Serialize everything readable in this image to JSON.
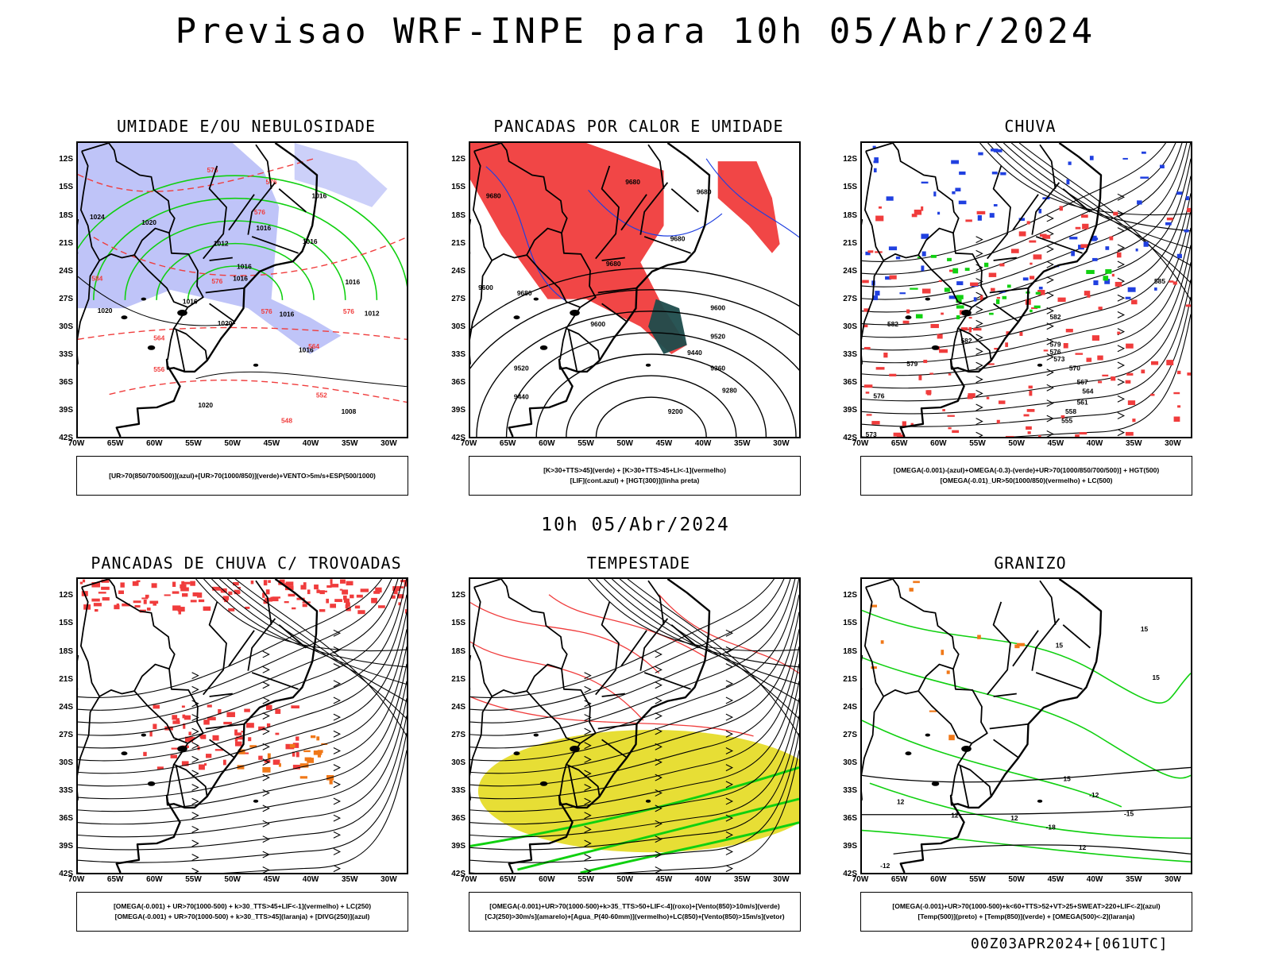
{
  "title": "Previsao WRF-INPE  para 10h 05/Abr/2024",
  "subtitle": "10h 05/Abr/2024",
  "run_id": "00Z03APR2024+[061UTC]",
  "lat_labels": [
    "12S",
    "15S",
    "18S",
    "21S",
    "24S",
    "27S",
    "30S",
    "33S",
    "36S",
    "39S",
    "42S"
  ],
  "lon_labels": [
    "70W",
    "65W",
    "60W",
    "55W",
    "50W",
    "45W",
    "40W",
    "35W",
    "30W"
  ],
  "colors": {
    "humid_blue": "#aab0f5",
    "red": "#f03c3c",
    "green": "#10d010",
    "blue": "#2040e0",
    "orange": "#f07818",
    "yellow": "#e6dc2a",
    "dark_teal": "#1e4c4c"
  },
  "panels": [
    {
      "title": "UMIDADE E/OU NEBULOSIDADE",
      "legend": [
        "[UR>70(850/700/500)](azul)+[UR>70(1000/850)](verde)+VENTO>5m/s+ESP(500/1000)"
      ],
      "labels": [
        {
          "text": "1012",
          "x": -51.5,
          "y": -21.2
        },
        {
          "text": "1016",
          "x": -46,
          "y": -19.5
        },
        {
          "text": "1016",
          "x": -40,
          "y": -21
        },
        {
          "text": "1016",
          "x": -38.8,
          "y": -16
        },
        {
          "text": "1016",
          "x": -48.5,
          "y": -23.7
        },
        {
          "text": "1016",
          "x": -49,
          "y": -25
        },
        {
          "text": "1016",
          "x": -34.5,
          "y": -25.4
        },
        {
          "text": "1016",
          "x": -55.5,
          "y": -27.5
        },
        {
          "text": "1016",
          "x": -43,
          "y": -28.9
        },
        {
          "text": "1016",
          "x": -40.5,
          "y": -32.8
        },
        {
          "text": "1012",
          "x": -32,
          "y": -28.8
        },
        {
          "text": "1020",
          "x": -51,
          "y": -29.9
        },
        {
          "text": "1020",
          "x": -60.8,
          "y": -18.9
        },
        {
          "text": "1020",
          "x": -66.5,
          "y": -28.5
        },
        {
          "text": "1020",
          "x": -53.5,
          "y": -38.8
        },
        {
          "text": "1008",
          "x": -35,
          "y": -39.5
        },
        {
          "text": "1024",
          "x": -67.5,
          "y": -18.3
        }
      ],
      "red_labels": [
        {
          "text": "576",
          "x": -52.6,
          "y": -13.2
        },
        {
          "text": "576",
          "x": -45,
          "y": -14.5
        },
        {
          "text": "576",
          "x": -46.5,
          "y": -17.8
        },
        {
          "text": "576",
          "x": -52,
          "y": -25.3
        },
        {
          "text": "576",
          "x": -45.6,
          "y": -28.6
        },
        {
          "text": "576",
          "x": -35,
          "y": -28.6
        },
        {
          "text": "564",
          "x": -59.5,
          "y": -31.5
        },
        {
          "text": "564",
          "x": -39.5,
          "y": -32.4
        },
        {
          "text": "556",
          "x": -59.5,
          "y": -34.9
        },
        {
          "text": "552",
          "x": -38.5,
          "y": -37.7
        },
        {
          "text": "548",
          "x": -43,
          "y": -40.5
        },
        {
          "text": "584",
          "x": -67.5,
          "y": -25
        }
      ]
    },
    {
      "title": "PANCADAS POR CALOR E UMIDADE",
      "legend": [
        "[K>30+TTS>45](verde) + [K>30+TTS>45+LI<-1](vermelho)",
        "[LIF](cont.azul) + [HGT(300)](linha preta)"
      ],
      "labels": [
        {
          "text": "9680",
          "x": -63,
          "y": -26.6
        },
        {
          "text": "9680",
          "x": -67,
          "y": -16
        },
        {
          "text": "9680",
          "x": -49,
          "y": -14.5
        },
        {
          "text": "9680",
          "x": -39.8,
          "y": -15.6
        },
        {
          "text": "9680",
          "x": -43.2,
          "y": -20.7
        },
        {
          "text": "9680",
          "x": -51.5,
          "y": -23.4
        },
        {
          "text": "9600",
          "x": -68,
          "y": -26
        },
        {
          "text": "9600",
          "x": -53.5,
          "y": -30
        },
        {
          "text": "9600",
          "x": -38,
          "y": -28.2
        },
        {
          "text": "9520",
          "x": -63.4,
          "y": -34.8
        },
        {
          "text": "9520",
          "x": -38,
          "y": -31.3
        },
        {
          "text": "9440",
          "x": -63.4,
          "y": -37.9
        },
        {
          "text": "9440",
          "x": -41,
          "y": -33.1
        },
        {
          "text": "9360",
          "x": -38,
          "y": -34.8
        },
        {
          "text": "9280",
          "x": -36.5,
          "y": -37.2
        },
        {
          "text": "9200",
          "x": -43.5,
          "y": -39.5
        }
      ]
    },
    {
      "title": "CHUVA",
      "legend": [
        "[OMEGA(-0.001)-(azul)+OMEGA(-0.3)-(verde)+UR>70(1000/850/700/500)] + HGT(500)",
        "[OMEGA(-0.01)_UR>50(1000/850)(vermelho) + LC(500)"
      ],
      "labels": [
        {
          "text": "585",
          "x": -31.5,
          "y": -25.3
        },
        {
          "text": "582",
          "x": -45,
          "y": -29.2
        },
        {
          "text": "579",
          "x": -45,
          "y": -32.2
        },
        {
          "text": "576",
          "x": -45,
          "y": -33
        },
        {
          "text": "573",
          "x": -44.5,
          "y": -33.8
        },
        {
          "text": "570",
          "x": -42.5,
          "y": -34.8
        },
        {
          "text": "567",
          "x": -41.5,
          "y": -36.3
        },
        {
          "text": "564",
          "x": -40.8,
          "y": -37.3
        },
        {
          "text": "561",
          "x": -41.5,
          "y": -38.5
        },
        {
          "text": "558",
          "x": -43,
          "y": -39.5
        },
        {
          "text": "555",
          "x": -43.5,
          "y": -40.5
        },
        {
          "text": "582",
          "x": -66,
          "y": -30
        },
        {
          "text": "582",
          "x": -56.5,
          "y": -31.8
        },
        {
          "text": "579",
          "x": -63.5,
          "y": -34.3
        },
        {
          "text": "576",
          "x": -67.8,
          "y": -37.8
        },
        {
          "text": "573",
          "x": -68.8,
          "y": -42
        }
      ]
    },
    {
      "title": "PANCADAS DE CHUVA C/ TROVOADAS",
      "legend": [
        "[OMEGA(-0.001) + UR>70(1000-500) + k>30_TTS>45+LIF<-1](vermelho) + LC(250)",
        "[OMEGA(-0.001) + UR>70(1000-500) + k>30_TTS>45](laranja) + [DIVG(250)](azul)"
      ],
      "labels": []
    },
    {
      "title": "TEMPESTADE",
      "legend": [
        "[OMEGA(-0.001)+UR>70(1000-500)+k>35_TTS>50+LIF<-4](roxo)+[Vento(850)>10m/s](verde)",
        "[CJ(250)>30m/s](amarelo)+[Agua_P(40-60mm)](vermelho)+LC(850)+[Vento(850)>15m/s](vetor)"
      ],
      "labels": []
    },
    {
      "title": "GRANIZO",
      "legend": [
        "[OMEGA(-0.001)+UR>70(1000-500)+k<60+TTS>52+VT>25+SWEAT>220+LIF<-2](azul)",
        "[Temp(500)](preto) + [Temp(850)](verde) + [OMEGA(500)<-2](laranja)"
      ],
      "labels": [
        {
          "text": "-12",
          "x": -40,
          "y": -33.8
        },
        {
          "text": "-15",
          "x": -35.5,
          "y": -35.8
        },
        {
          "text": "-18",
          "x": -45.6,
          "y": -37.3
        },
        {
          "text": "-12",
          "x": -67,
          "y": -41.5
        },
        {
          "text": "12",
          "x": -65,
          "y": -34.5
        },
        {
          "text": "12",
          "x": -58,
          "y": -36
        },
        {
          "text": "12",
          "x": -50.3,
          "y": -36.3
        },
        {
          "text": "15",
          "x": -43.5,
          "y": -32
        },
        {
          "text": "15",
          "x": -33.5,
          "y": -15.7
        },
        {
          "text": "15",
          "x": -32,
          "y": -21
        },
        {
          "text": "15",
          "x": -44.5,
          "y": -17.5
        },
        {
          "text": "12",
          "x": -41.5,
          "y": -39.5
        }
      ]
    }
  ]
}
